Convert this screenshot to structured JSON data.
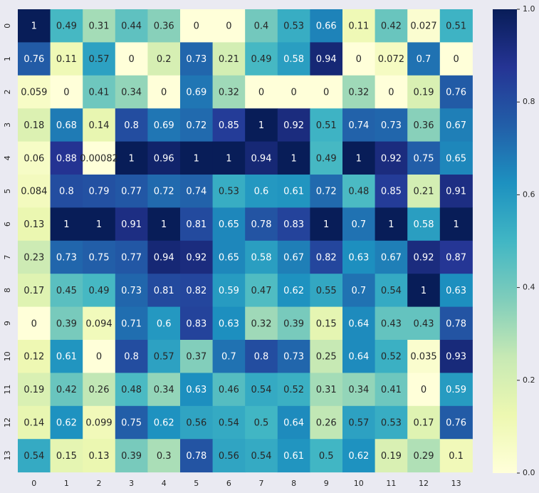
{
  "chart_data": {
    "type": "heatmap",
    "title": "",
    "xlabel": "",
    "ylabel": "",
    "x_ticks": [
      "0",
      "1",
      "2",
      "3",
      "4",
      "5",
      "6",
      "7",
      "8",
      "9",
      "10",
      "11",
      "12",
      "13"
    ],
    "y_ticks": [
      "0",
      "1",
      "2",
      "3",
      "4",
      "5",
      "6",
      "7",
      "8",
      "9",
      "10",
      "11",
      "12",
      "13"
    ],
    "colormap": "YlGnBu",
    "vmin": 0.0,
    "vmax": 1.0,
    "colorbar_ticks": [
      "0.0",
      "0.2",
      "0.4",
      "0.6",
      "0.8",
      "1.0"
    ],
    "colorbar_tick_values": [
      0.0,
      0.2,
      0.4,
      0.6,
      0.8,
      1.0
    ],
    "cells": [
      [
        "1",
        "0.49",
        "0.31",
        "0.44",
        "0.36",
        "0",
        "0",
        "0.4",
        "0.53",
        "0.66",
        "0.11",
        "0.42",
        "0.027",
        "0.51"
      ],
      [
        "0.76",
        "0.11",
        "0.57",
        "0",
        "0.2",
        "0.73",
        "0.21",
        "0.49",
        "0.58",
        "0.94",
        "0",
        "0.072",
        "0.7",
        "0"
      ],
      [
        "0.059",
        "0",
        "0.41",
        "0.34",
        "0",
        "0.69",
        "0.32",
        "0",
        "0",
        "0",
        "0.32",
        "0",
        "0.19",
        "0.76"
      ],
      [
        "0.18",
        "0.68",
        "0.14",
        "0.8",
        "0.69",
        "0.72",
        "0.85",
        "1",
        "0.92",
        "0.51",
        "0.74",
        "0.73",
        "0.36",
        "0.67"
      ],
      [
        "0.06",
        "0.88",
        "0.00082",
        "1",
        "0.96",
        "1",
        "1",
        "0.94",
        "1",
        "0.49",
        "1",
        "0.92",
        "0.75",
        "0.65"
      ],
      [
        "0.084",
        "0.8",
        "0.79",
        "0.77",
        "0.72",
        "0.74",
        "0.53",
        "0.6",
        "0.61",
        "0.72",
        "0.48",
        "0.85",
        "0.21",
        "0.91"
      ],
      [
        "0.13",
        "1",
        "1",
        "0.91",
        "1",
        "0.81",
        "0.65",
        "0.78",
        "0.83",
        "1",
        "0.7",
        "1",
        "0.58",
        "1"
      ],
      [
        "0.23",
        "0.73",
        "0.75",
        "0.77",
        "0.94",
        "0.92",
        "0.65",
        "0.58",
        "0.67",
        "0.82",
        "0.63",
        "0.67",
        "0.92",
        "0.87"
      ],
      [
        "0.17",
        "0.45",
        "0.49",
        "0.73",
        "0.81",
        "0.82",
        "0.59",
        "0.47",
        "0.62",
        "0.55",
        "0.7",
        "0.54",
        "1",
        "0.63"
      ],
      [
        "0",
        "0.39",
        "0.094",
        "0.71",
        "0.6",
        "0.83",
        "0.63",
        "0.32",
        "0.39",
        "0.15",
        "0.64",
        "0.43",
        "0.43",
        "0.78"
      ],
      [
        "0.12",
        "0.61",
        "0",
        "0.8",
        "0.57",
        "0.37",
        "0.7",
        "0.8",
        "0.73",
        "0.25",
        "0.64",
        "0.52",
        "0.035",
        "0.93"
      ],
      [
        "0.19",
        "0.42",
        "0.26",
        "0.48",
        "0.34",
        "0.63",
        "0.46",
        "0.54",
        "0.52",
        "0.31",
        "0.34",
        "0.41",
        "0",
        "0.59"
      ],
      [
        "0.14",
        "0.62",
        "0.099",
        "0.75",
        "0.62",
        "0.56",
        "0.54",
        "0.5",
        "0.64",
        "0.26",
        "0.57",
        "0.53",
        "0.17",
        "0.76"
      ],
      [
        "0.54",
        "0.15",
        "0.13",
        "0.39",
        "0.3",
        "0.78",
        "0.56",
        "0.54",
        "0.61",
        "0.5",
        "0.62",
        "0.19",
        "0.29",
        "0.1"
      ]
    ],
    "grid": false,
    "legend": "colorbar-right"
  }
}
